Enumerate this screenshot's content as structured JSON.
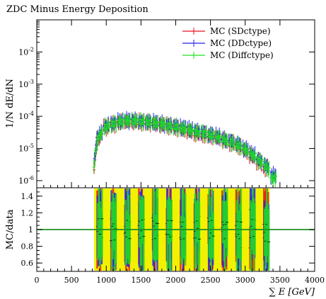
{
  "chart_data": [
    {
      "type": "line",
      "title": "ZDC Minus Energy Deposition",
      "ylabel": "1/N dE/dN",
      "yscale": "log",
      "xlim": [
        0,
        4000
      ],
      "ylim": [
        6e-07,
        0.1
      ],
      "x_ticks": [
        "0",
        "500",
        "1000",
        "1500",
        "2000",
        "2500",
        "3000",
        "3500",
        "4000"
      ],
      "y_ticks": [
        "10^-6",
        "10^-5",
        "10^-4",
        "10^-3",
        "10^-2"
      ],
      "legend_position": "top-right",
      "series": [
        {
          "name": "MC (SDctype)",
          "color": "#e8101c",
          "x": [
            825,
            900,
            1000,
            1100,
            1200,
            1300,
            1400,
            1500,
            1600,
            1700,
            1800,
            1900,
            2000,
            2100,
            2200,
            2300,
            2400,
            2500,
            2600,
            2700,
            2800,
            2900,
            3000,
            3100,
            3200,
            3300
          ],
          "y": [
            2e-06,
            2e-05,
            4.5e-05,
            5.5e-05,
            6.5e-05,
            7e-05,
            7e-05,
            6.8e-05,
            6.5e-05,
            6e-05,
            5.5e-05,
            5e-05,
            4.5e-05,
            4e-05,
            3.5e-05,
            3e-05,
            2.8e-05,
            2.5e-05,
            2.2e-05,
            1.8e-05,
            1.5e-05,
            1.2e-05,
            9e-06,
            6e-06,
            4e-06,
            2.5e-06
          ]
        },
        {
          "name": "MC (DDctype)",
          "color": "#2222ee",
          "x": [
            825,
            900,
            1000,
            1100,
            1200,
            1300,
            1400,
            1500,
            1600,
            1700,
            1800,
            1900,
            2000,
            2100,
            2200,
            2300,
            2400,
            2500,
            2600,
            2700,
            2800,
            2900,
            3000,
            3100,
            3200,
            3300,
            3400
          ],
          "y": [
            3e-06,
            2.5e-05,
            5e-05,
            6e-05,
            7e-05,
            7.5e-05,
            7.5e-05,
            7e-05,
            6.8e-05,
            6.5e-05,
            6e-05,
            5.5e-05,
            5e-05,
            4.5e-05,
            4e-05,
            3.5e-05,
            3.2e-05,
            2.8e-05,
            2.5e-05,
            2e-05,
            1.7e-05,
            1.4e-05,
            1e-05,
            7e-06,
            4.5e-06,
            3e-06,
            1.5e-06
          ]
        },
        {
          "name": "MC (Diffctype)",
          "color": "#22dd22",
          "x": [
            825,
            900,
            1000,
            1100,
            1200,
            1300,
            1400,
            1500,
            1600,
            1700,
            1800,
            1900,
            2000,
            2100,
            2200,
            2300,
            2400,
            2500,
            2600,
            2700,
            2800,
            2900,
            3000,
            3100,
            3200,
            3300,
            3400
          ],
          "y": [
            2.5e-06,
            2.2e-05,
            4.8e-05,
            5.8e-05,
            6.8e-05,
            7.2e-05,
            7.2e-05,
            6.9e-05,
            6.6e-05,
            6.2e-05,
            5.8e-05,
            5.2e-05,
            4.8e-05,
            4.2e-05,
            3.8e-05,
            3.2e-05,
            3e-05,
            2.6e-05,
            2.3e-05,
            1.9e-05,
            1.6e-05,
            1.3e-05,
            9.5e-06,
            6.5e-06,
            4.2e-06,
            2.8e-06,
            1.2e-06
          ]
        }
      ]
    },
    {
      "type": "line",
      "ylabel": "MC/data",
      "xlabel": "∑ E [GeV]",
      "xlim": [
        0,
        4000
      ],
      "ylim": [
        0.5,
        1.5
      ],
      "x_ticks": [
        "0",
        "500",
        "1000",
        "1500",
        "2000",
        "2500",
        "3000",
        "3500",
        "4000"
      ],
      "y_ticks": [
        "0.6",
        "0.8",
        "1",
        "1.2",
        "1.4"
      ],
      "reference_line": {
        "y": 1.0,
        "color": "#1f8f1f"
      },
      "uncertainty_band": {
        "color": "#f2f200",
        "x_range": [
          825,
          3350
        ]
      },
      "series": [
        {
          "name": "MC (SDctype)",
          "color": "#e8101c",
          "x": [
            900,
            1100,
            1300,
            1500,
            1700,
            1900,
            2100,
            2300,
            2500,
            2700,
            2900,
            3100,
            3300
          ],
          "y": [
            1.0,
            0.98,
            1.02,
            0.97,
            1.03,
            0.96,
            1.02,
            0.95,
            1.05,
            0.92,
            1.08,
            0.9,
            1.1
          ]
        },
        {
          "name": "MC (DDctype)",
          "color": "#2222ee",
          "x": [
            900,
            1100,
            1300,
            1500,
            1700,
            1900,
            2100,
            2300,
            2500,
            2700,
            2900,
            3100,
            3300
          ],
          "y": [
            1.02,
            1.01,
            0.99,
            1.03,
            0.98,
            1.04,
            0.97,
            1.05,
            0.94,
            1.07,
            0.9,
            1.12,
            0.88
          ]
        },
        {
          "name": "MC (Diffctype)",
          "color": "#22dd22",
          "x": [
            900,
            1100,
            1300,
            1500,
            1700,
            1900,
            2100,
            2300,
            2500,
            2700,
            2900,
            3100,
            3300
          ],
          "y": [
            1.01,
            0.99,
            1.0,
            1.0,
            1.01,
            0.99,
            1.0,
            1.0,
            0.99,
            1.01,
            0.98,
            1.02,
            0.97
          ]
        }
      ]
    }
  ]
}
